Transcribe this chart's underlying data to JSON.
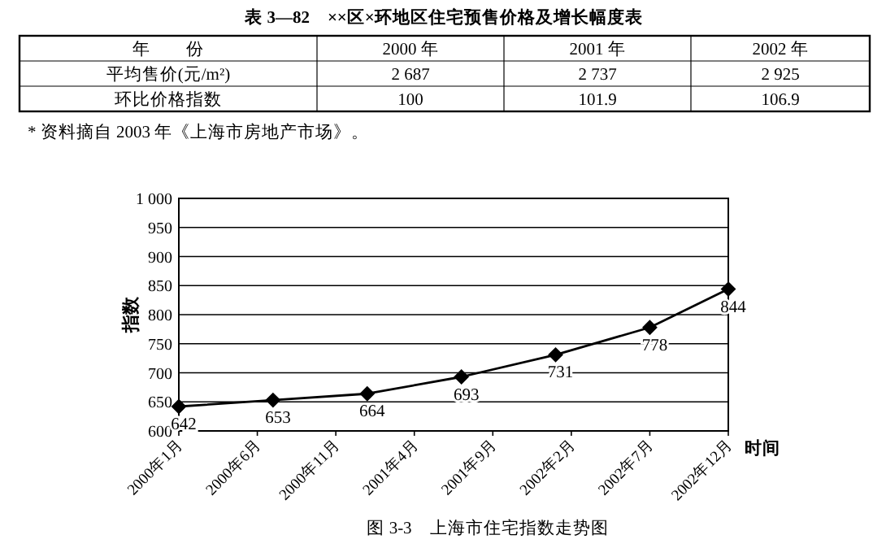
{
  "chart_data": [
    {
      "type": "other",
      "title": "表 3—82　××区×环地区住宅预售价格及增长幅度表",
      "xlabel": "年　　份",
      "categories": [
        "2000 年",
        "2001 年",
        "2002 年"
      ],
      "y_categories": [
        "平均售价(元/m²)",
        "环比价格指数"
      ],
      "cell_labels": [
        [
          "2 687",
          "2 737",
          "2 925"
        ],
        [
          "100",
          "101.9",
          "106.9"
        ]
      ],
      "annotations": [
        "* 资料摘自 2003 年《上海市房地产市场》。"
      ]
    },
    {
      "type": "line",
      "title": "图 3-3　上海市住宅指数走势图",
      "xlabel": "时间",
      "ylabel": "指数",
      "x": [
        "2000-01",
        "2000-07",
        "2001-01",
        "2001-07",
        "2002-01",
        "2002-07",
        "2002-12"
      ],
      "values": [
        642,
        653,
        664,
        693,
        731,
        778,
        844
      ],
      "color": "#000000",
      "marker": "diamond",
      "data_labels": true,
      "grid": "y",
      "xlim": [
        "2000-01",
        "2002-12"
      ],
      "xticks": [
        {
          "value": "2000-01",
          "label": "2000年1月"
        },
        {
          "value": "2000-06",
          "label": "2000年6月"
        },
        {
          "value": "2000-11",
          "label": "2000年11月"
        },
        {
          "value": "2001-04",
          "label": "2001年4月"
        },
        {
          "value": "2001-09",
          "label": "2001年9月"
        },
        {
          "value": "2002-02",
          "label": "2002年2月"
        },
        {
          "value": "2002-07",
          "label": "2002年7月"
        },
        {
          "value": "2002-12",
          "label": "2002年12月"
        }
      ],
      "ylim": [
        600,
        1000
      ],
      "yticks": [
        600,
        650,
        700,
        750,
        800,
        850,
        900,
        950,
        {
          "value": 1000,
          "label": "1 000"
        }
      ]
    }
  ]
}
